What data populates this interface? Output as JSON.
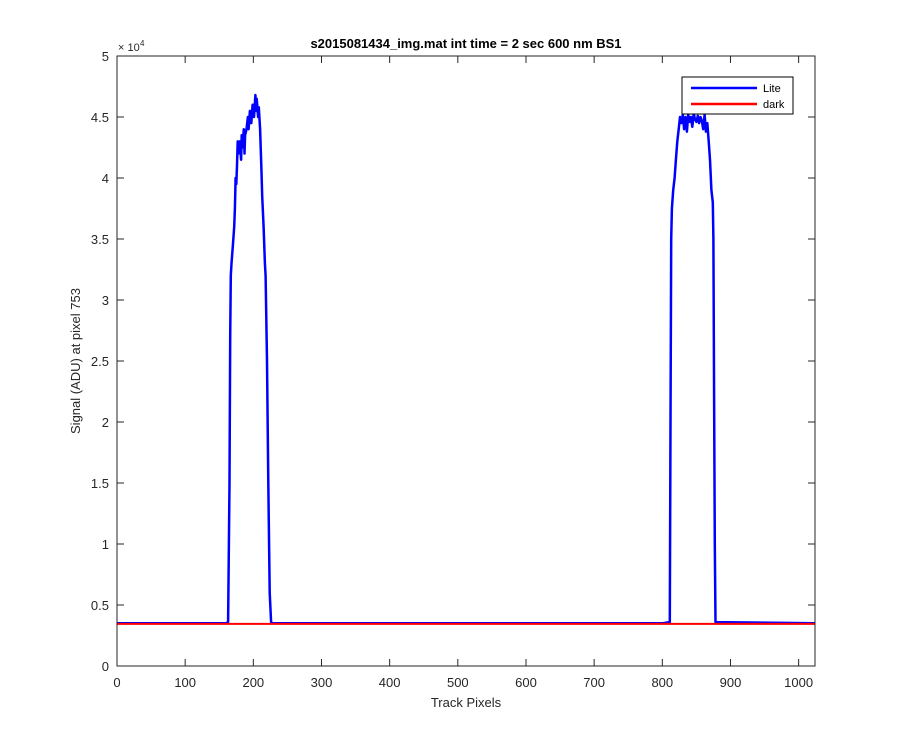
{
  "chart_data": {
    "type": "line",
    "title": "s2015081434_img.mat int time = 2 sec  600 nm BS1",
    "xlabel": "Track Pixels",
    "ylabel": "Signal (ADU) at pixel 753",
    "xlim": [
      0,
      1024
    ],
    "ylim": [
      0,
      50000
    ],
    "x_ticks": [
      0,
      100,
      200,
      300,
      400,
      500,
      600,
      700,
      800,
      900,
      1000
    ],
    "y_ticks": [
      0,
      0.5,
      1,
      1.5,
      2,
      2.5,
      3,
      3.5,
      4,
      4.5,
      5
    ],
    "y_exponent_base": "× 10",
    "y_exponent_power": "4",
    "legend_position": "top-right",
    "grid": false,
    "series": [
      {
        "name": "Lite",
        "color": "#0000ff",
        "x": [
          0,
          160,
          163,
          165,
          166,
          167,
          168,
          170,
          172,
          173,
          174,
          175,
          176,
          177,
          178,
          180,
          182,
          183,
          184,
          186,
          187,
          188,
          190,
          192,
          193,
          195,
          197,
          199,
          201,
          203,
          204,
          205,
          206,
          207,
          208,
          210,
          212,
          213,
          215,
          217,
          218,
          220,
          222,
          224,
          226,
          228,
          229,
          230,
          800,
          811,
          812,
          813,
          814,
          816,
          818,
          820,
          822,
          824,
          826,
          828,
          830,
          832,
          834,
          836,
          838,
          840,
          842,
          844,
          846,
          848,
          850,
          852,
          854,
          856,
          858,
          860,
          862,
          864,
          866,
          868,
          870,
          872,
          874,
          875,
          876,
          877,
          878,
          1024
        ],
        "y": [
          3500,
          3500,
          3600,
          15000,
          27000,
          32000,
          33000,
          34500,
          36000,
          37500,
          40000,
          39500,
          41000,
          43000,
          42000,
          43000,
          41500,
          43500,
          42500,
          44000,
          42000,
          43500,
          44000,
          45000,
          44000,
          45500,
          44500,
          46000,
          45000,
          46800,
          45500,
          46500,
          45800,
          45000,
          45800,
          44000,
          40500,
          38500,
          36000,
          33000,
          32000,
          25000,
          15000,
          6000,
          3600,
          3500,
          3500,
          3500,
          3500,
          3600,
          20000,
          35000,
          37500,
          39000,
          40000,
          41500,
          43000,
          44000,
          45000,
          44500,
          45200,
          44000,
          45000,
          43800,
          45200,
          44600,
          45000,
          44200,
          45300,
          44800,
          44600,
          45100,
          44500,
          45000,
          44700,
          44000,
          45200,
          43800,
          44500,
          43000,
          41500,
          39000,
          38000,
          35000,
          22000,
          10000,
          3600,
          3500
        ]
      },
      {
        "name": "dark",
        "color": "#ff0000",
        "x": [
          0,
          1024
        ],
        "y": [
          3450,
          3450
        ]
      }
    ]
  }
}
